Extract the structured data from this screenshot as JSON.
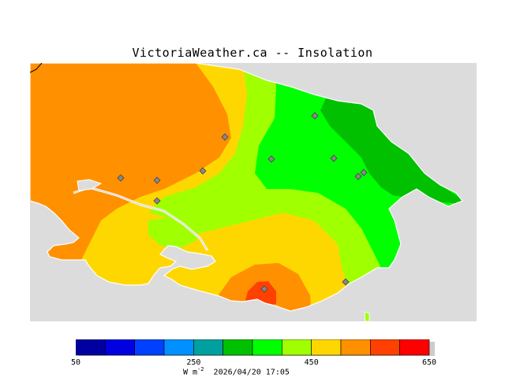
{
  "title": "VictoriaWeather.ca -- Insolation",
  "colors": {
    "ocean": "#dcdcdc",
    "land_outline": "#ffffff",
    "marker": "#888888"
  },
  "map": {
    "quantity": "Insolation",
    "stations": [
      {
        "name": "station"
      },
      {
        "name": "station"
      },
      {
        "name": "station"
      },
      {
        "name": "station"
      },
      {
        "name": "station"
      },
      {
        "name": "station"
      },
      {
        "name": "station"
      },
      {
        "name": "station"
      },
      {
        "name": "station"
      },
      {
        "name": "station"
      },
      {
        "name": "station"
      },
      {
        "name": "station"
      }
    ]
  },
  "legend": {
    "ticks": [
      "50",
      "250",
      "450",
      "650"
    ],
    "unit_prefix": "W m",
    "unit_exp": "-2",
    "timestamp": "2026/04/20 17:05",
    "bins": [
      {
        "from": 50,
        "to": 100,
        "color": "#0000a0"
      },
      {
        "from": 100,
        "to": 150,
        "color": "#0000e0"
      },
      {
        "from": 150,
        "to": 200,
        "color": "#0040ff"
      },
      {
        "from": 200,
        "to": 250,
        "color": "#0090ff"
      },
      {
        "from": 250,
        "to": 300,
        "color": "#00a0a0"
      },
      {
        "from": 300,
        "to": 350,
        "color": "#00c000"
      },
      {
        "from": 350,
        "to": 400,
        "color": "#00ff00"
      },
      {
        "from": 400,
        "to": 450,
        "color": "#a0ff00"
      },
      {
        "from": 450,
        "to": 500,
        "color": "#ffd700"
      },
      {
        "from": 500,
        "to": 550,
        "color": "#ff9000"
      },
      {
        "from": 550,
        "to": 600,
        "color": "#ff4000"
      },
      {
        "from": 600,
        "to": 650,
        "color": "#ff0000"
      }
    ]
  }
}
